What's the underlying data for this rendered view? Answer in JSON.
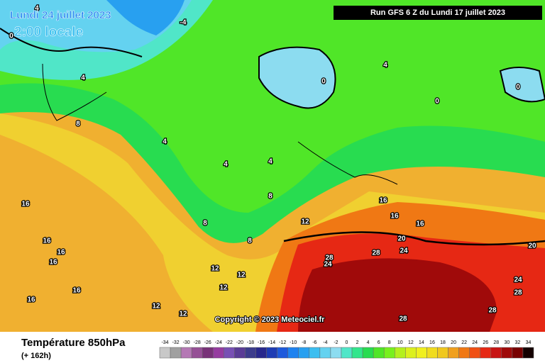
{
  "header": {
    "date": "Lundi 24 juillet 2023",
    "time": "2:00 locale",
    "run": "Run GFS 6 Z du Lundi 17 juillet 2023",
    "copyright": "Copyright © 2023 Meteociel.fr"
  },
  "legend": {
    "title": "Température 850hPa",
    "forecast": "(+ 162h)",
    "scale": [
      -34,
      -32,
      -30,
      -28,
      -26,
      -24,
      -22,
      -20,
      -18,
      -16,
      -14,
      -12,
      -10,
      -8,
      -6,
      -4,
      -2,
      0,
      2,
      4,
      6,
      8,
      10,
      12,
      14,
      16,
      18,
      20,
      22,
      24,
      26,
      28,
      30,
      32,
      34
    ],
    "colors": [
      "#c8c8c8",
      "#a0a0a0",
      "#b478b4",
      "#965096",
      "#783278",
      "#963ca0",
      "#7850b4",
      "#5a3c96",
      "#3c3c8c",
      "#28288c",
      "#1e3cb4",
      "#1e5adc",
      "#1e82f0",
      "#28a0f0",
      "#3cbef0",
      "#64d2f0",
      "#8cdcf0",
      "#50e6c8",
      "#32e68c",
      "#28dc50",
      "#50e628",
      "#78f01e",
      "#b4f01e",
      "#dcf01e",
      "#f0f01e",
      "#f0dc1e",
      "#f0c81e",
      "#f0a01e",
      "#f07814",
      "#f05014",
      "#e62814",
      "#c81414",
      "#a00a0a",
      "#780000",
      "#140000"
    ]
  },
  "contour_labels": [
    "4",
    "-4",
    "0",
    "4",
    "0",
    "0",
    "8",
    "4",
    "4",
    "4",
    "8",
    "8",
    "8",
    "12",
    "16",
    "16",
    "16",
    "20",
    "24",
    "28",
    "28",
    "24",
    "16",
    "16",
    "16",
    "16",
    "16",
    "16",
    "12",
    "12",
    "12",
    "12",
    "12",
    "20",
    "24",
    "28",
    "28",
    "28",
    "0",
    "4"
  ]
}
